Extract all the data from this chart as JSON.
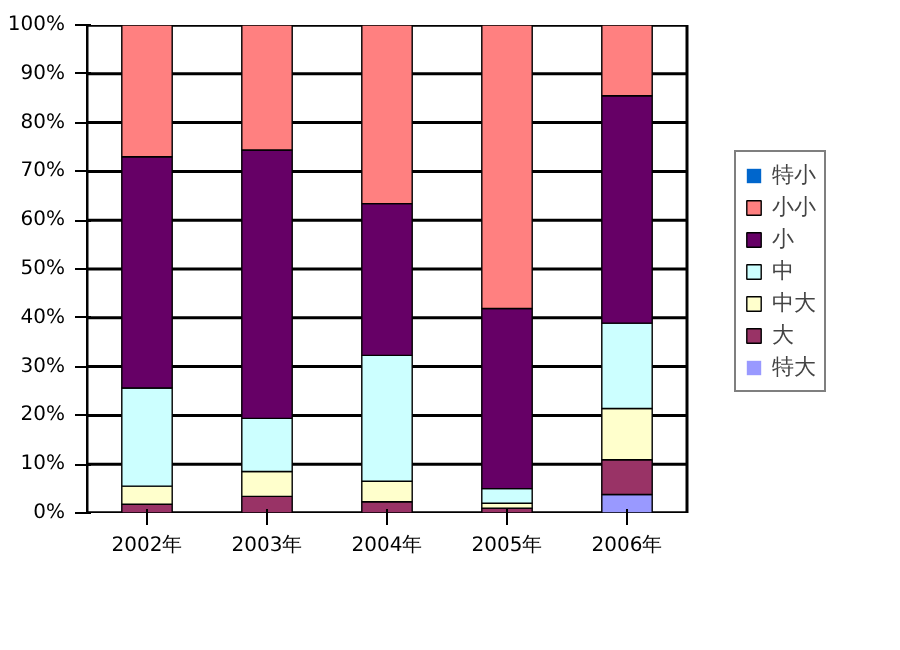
{
  "chart_data": {
    "type": "bar",
    "stacked": true,
    "categories": [
      "2002年",
      "2003年",
      "2004年",
      "2005年",
      "2006年"
    ],
    "series": [
      {
        "name": "特大",
        "color": "#9999ff",
        "values": [
          null,
          null,
          null,
          null,
          3.8
        ]
      },
      {
        "name": "大",
        "color": "#993366",
        "values": [
          1.8,
          3.4,
          2.3,
          1.0,
          7.1
        ]
      },
      {
        "name": "中大",
        "color": "#ffffcc",
        "values": [
          3.7,
          5.1,
          4.2,
          1.0,
          10.5
        ]
      },
      {
        "name": "中",
        "color": "#ccffff",
        "values": [
          20.1,
          10.9,
          25.8,
          3.0,
          17.5
        ]
      },
      {
        "name": "小",
        "color": "#660066",
        "values": [
          47.4,
          55.0,
          31.1,
          36.9,
          46.6
        ]
      },
      {
        "name": "小小",
        "color": "#ff8080",
        "values": [
          27.0,
          25.6,
          36.6,
          58.1,
          14.5
        ]
      },
      {
        "name": "特小",
        "color": "#0066cc",
        "values": [
          0,
          0,
          0,
          null,
          0
        ]
      }
    ],
    "ylim": [
      0,
      100
    ],
    "yticks": [
      {
        "value": 0,
        "label": "0%"
      },
      {
        "value": 10,
        "label": "10%"
      },
      {
        "value": 20,
        "label": "20%"
      },
      {
        "value": 30,
        "label": "30%"
      },
      {
        "value": 40,
        "label": "40%"
      },
      {
        "value": 50,
        "label": "50%"
      },
      {
        "value": 60,
        "label": "60%"
      },
      {
        "value": 70,
        "label": "70%"
      },
      {
        "value": 80,
        "label": "80%"
      },
      {
        "value": 90,
        "label": "90%"
      },
      {
        "value": 100,
        "label": "100%"
      }
    ],
    "grid": "y",
    "legend": "right"
  }
}
